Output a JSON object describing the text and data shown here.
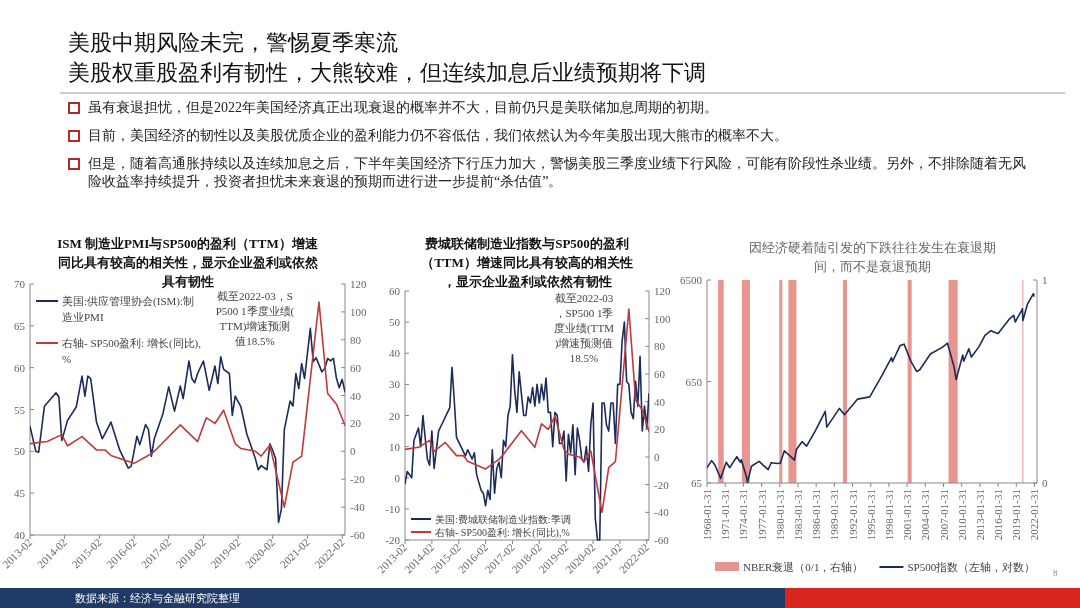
{
  "chart_data": [
    {
      "type": "other",
      "title": "美股中期风险未完，警惕夏季寒流",
      "subtitle": "美股权重股盈利有韧性，大熊较难，但连续加息后业绩预期将下调",
      "annotations": [
        "虽有衰退担忧，但是2022年美国经济真正出现衰退的概率并不大，目前仍只是美联储加息周期的初期。",
        "目前，美国经济的韧性以及美股优质企业的盈利能力仍不容低估，我们依然认为今年美股出现大熊市的概率不大。",
        "但是，随着高通胀持续以及连续加息之后，下半年美国经济下行压力加大，警惕美股三季度业绩下行风险，可能有阶段性杀业绩。另外，不排除随着无风险收益率持续提升，投资者担忧未来衰退的预期而进行进一步提前“杀估值”。",
        "数据来源：经济与金融研究院整理",
        "8"
      ]
    },
    {
      "type": "line",
      "title": "ISM 制造业PMI与SP500的盈利（TTM）增速同比具有较高的相关性，显示企业盈利或依然具有韧性",
      "legend": "top left",
      "xlim": [
        "2013-02",
        "2022-03"
      ],
      "xticks": [
        "2013-02",
        "2014-02",
        "2015-02",
        "2016-02",
        "2017-02",
        "2018-02",
        "2019-02",
        "2020-02",
        "2021-02",
        "2022-02"
      ],
      "ylim": [
        40,
        70
      ],
      "yticks": [
        40,
        45,
        50,
        55,
        60,
        65,
        70
      ],
      "y2lim": [
        -60,
        120
      ],
      "y2ticks": [
        -60,
        -40,
        -20,
        0,
        20,
        40,
        60,
        80,
        100,
        120
      ],
      "series": [
        {
          "name": "美国:供应管理协会(ISM):制造业PMI",
          "color": "#1c2b5a",
          "x": [
            "2013-02",
            "2013-04",
            "2013-05",
            "2013-07",
            "2013-09",
            "2013-11",
            "2013-12",
            "2014-01",
            "2014-03",
            "2014-06",
            "2014-08",
            "2014-09",
            "2014-10",
            "2014-11",
            "2015-01",
            "2015-03",
            "2015-05",
            "2015-06",
            "2015-09",
            "2015-12",
            "2016-01",
            "2016-03",
            "2016-04",
            "2016-06",
            "2016-07",
            "2016-08",
            "2016-09",
            "2016-12",
            "2017-02",
            "2017-04",
            "2017-06",
            "2017-07",
            "2017-09",
            "2017-10",
            "2017-11",
            "2017-12",
            "2018-02",
            "2018-04",
            "2018-05",
            "2018-06",
            "2018-07",
            "2018-08",
            "2018-09",
            "2018-11",
            "2018-12",
            "2019-01",
            "2019-03",
            "2019-05",
            "2019-08",
            "2019-09",
            "2019-10",
            "2019-12",
            "2020-01",
            "2020-02",
            "2020-03",
            "2020-04",
            "2020-05",
            "2020-06",
            "2020-08",
            "2020-09",
            "2020-10",
            "2020-11",
            "2020-12",
            "2021-01",
            "2021-03",
            "2021-04",
            "2021-05",
            "2021-07",
            "2021-08",
            "2021-09",
            "2021-10",
            "2021-11",
            "2021-12",
            "2022-01",
            "2022-02",
            "2022-03"
          ],
          "values": [
            53,
            50,
            49.9,
            55.4,
            56.2,
            57,
            56.5,
            51.3,
            53.7,
            55.3,
            59,
            56.6,
            59,
            58.7,
            53.5,
            51.5,
            52.8,
            53.5,
            50.2,
            48,
            48.2,
            51.8,
            50.8,
            53.2,
            52.6,
            49.4,
            51.5,
            54.5,
            57.7,
            54.8,
            57.8,
            56.3,
            60.8,
            58.7,
            58.2,
            59.3,
            60.8,
            57.3,
            58.7,
            60.2,
            58.1,
            61.3,
            59.8,
            59.3,
            54.3,
            56.6,
            55.3,
            52.1,
            49.1,
            47.8,
            48.3,
            47.8,
            50.9,
            50.1,
            49.1,
            41.5,
            43.1,
            52.6,
            56,
            55.4,
            59.3,
            57.5,
            60.5,
            58.7,
            64.7,
            60.7,
            61.2,
            59.5,
            59.9,
            61.1,
            60.8,
            61.1,
            58.8,
            57.6,
            58.6,
            57.1
          ]
        },
        {
          "name": "右轴- SP500盈利: 增长(同比),%",
          "color": "#c0393b",
          "axis": "y2",
          "x": [
            "2013-02",
            "2013-08",
            "2014-01",
            "2014-03",
            "2014-08",
            "2015-01",
            "2015-04",
            "2015-06",
            "2016-02",
            "2016-08",
            "2016-10",
            "2017-06",
            "2017-12",
            "2018-03",
            "2018-06",
            "2018-09",
            "2019-01",
            "2019-03",
            "2019-08",
            "2019-10",
            "2020-01",
            "2020-06",
            "2020-09",
            "2020-12",
            "2021-06",
            "2021-09",
            "2021-12",
            "2022-03"
          ],
          "values": [
            5.5,
            7,
            12,
            4,
            10.5,
            1,
            1,
            -3,
            -8.6,
            -1.7,
            2,
            19,
            7,
            24,
            20,
            29.5,
            5.5,
            2,
            0,
            -3.4,
            4.3,
            -40,
            -7.7,
            -3.4,
            107,
            41.5,
            34,
            18.5
          ]
        }
      ],
      "annotations": [
        "截至2022-03，SP500 1季度业绩(TTM)增速预测值18.5%"
      ]
    },
    {
      "type": "line",
      "title": "费城联储制造业指数与SP500的盈利（TTM）增速同比具有较高的相关性，显示企业盈利或依然有韧性",
      "legend": "bottom left",
      "xlim": [
        "2013-02",
        "2022-03"
      ],
      "xticks": [
        "2013-02",
        "2014-02",
        "2015-02",
        "2016-02",
        "2017-02",
        "2018-02",
        "2019-02",
        "2020-02",
        "2021-02",
        "2022-02"
      ],
      "ylim": [
        -20,
        60
      ],
      "yticks": [
        -20,
        -10,
        0,
        10,
        20,
        30,
        40,
        50,
        60
      ],
      "y2lim": [
        -60,
        120
      ],
      "y2ticks": [
        -60,
        -40,
        -20,
        0,
        20,
        40,
        60,
        80,
        100,
        120
      ],
      "series": [
        {
          "name": "美国:费城联储制造业指数:季调",
          "color": "#1c2b5a",
          "x": [
            "2013-02",
            "2013-03",
            "2013-05",
            "2013-06",
            "2013-08",
            "2013-09",
            "2013-10",
            "2013-12",
            "2014-01",
            "2014-02",
            "2014-03",
            "2014-05",
            "2014-07",
            "2014-09",
            "2014-10",
            "2014-11",
            "2014-12",
            "2015-01",
            "2015-03",
            "2015-05",
            "2015-06",
            "2015-08",
            "2015-09",
            "2015-10",
            "2015-12",
            "2016-01",
            "2016-02",
            "2016-03",
            "2016-04",
            "2016-05",
            "2016-06",
            "2016-07",
            "2016-08",
            "2016-09",
            "2016-10",
            "2016-11",
            "2016-12",
            "2017-01",
            "2017-02",
            "2017-03",
            "2017-04",
            "2017-05",
            "2017-06",
            "2017-07",
            "2017-08",
            "2017-09",
            "2017-10",
            "2017-11",
            "2017-12",
            "2018-01",
            "2018-02",
            "2018-03",
            "2018-04",
            "2018-05",
            "2018-06",
            "2018-07",
            "2018-08",
            "2018-09",
            "2018-10",
            "2018-11",
            "2018-12",
            "2019-01",
            "2019-02",
            "2019-03",
            "2019-04",
            "2019-05",
            "2019-06",
            "2019-07",
            "2019-08",
            "2019-09",
            "2019-10",
            "2019-11",
            "2019-12",
            "2020-01",
            "2020-02",
            "2020-03",
            "2020-04",
            "2020-05",
            "2020-06",
            "2020-07",
            "2020-08",
            "2020-09",
            "2020-10",
            "2020-11",
            "2020-12",
            "2021-01",
            "2021-02",
            "2021-03",
            "2021-04",
            "2021-05",
            "2021-06",
            "2021-07",
            "2021-08",
            "2021-09",
            "2021-10",
            "2021-11",
            "2021-12",
            "2022-01",
            "2022-02",
            "2022-03"
          ],
          "values": [
            -2,
            2,
            0,
            12,
            16,
            10,
            20,
            6,
            4,
            15,
            3,
            15,
            18,
            21,
            22.5,
            35.5,
            25,
            13,
            10,
            7,
            9,
            6,
            8,
            1,
            -4,
            -5,
            -9,
            -4,
            -7,
            9,
            -5,
            3,
            5,
            0,
            12,
            10,
            20,
            23,
            39.5,
            28,
            21,
            34,
            27,
            20,
            20,
            26,
            24,
            29,
            23,
            30,
            24,
            30,
            25,
            32,
            21,
            21,
            10,
            21,
            20,
            11,
            11,
            15,
            -1,
            14,
            8,
            17,
            1,
            16,
            12,
            6,
            5,
            10,
            2,
            17,
            24,
            -13,
            -20,
            -20,
            24,
            24,
            17,
            15,
            24,
            24,
            11,
            30,
            30,
            44,
            50,
            31,
            30,
            21,
            19,
            31,
            23,
            39,
            15,
            23,
            16,
            27
          ]
        },
        {
          "name": "右轴- SP500盈利: 增长(同比),%",
          "color": "#c0393b",
          "axis": "y2",
          "x": [
            "2013-02",
            "2013-08",
            "2014-01",
            "2014-03",
            "2014-08",
            "2015-01",
            "2015-04",
            "2015-06",
            "2016-02",
            "2016-08",
            "2016-10",
            "2017-06",
            "2017-12",
            "2018-03",
            "2018-06",
            "2018-09",
            "2019-01",
            "2019-03",
            "2019-08",
            "2019-10",
            "2020-01",
            "2020-06",
            "2020-09",
            "2020-12",
            "2021-06",
            "2021-09",
            "2021-12",
            "2022-03"
          ],
          "values": [
            5.5,
            7,
            12,
            4,
            10.5,
            1,
            1,
            -3,
            -8.6,
            -1.7,
            2,
            19,
            7,
            24,
            20,
            29.5,
            5.5,
            2,
            0,
            -3.4,
            4.3,
            -40,
            -7.7,
            -3.4,
            107,
            41.5,
            34,
            18.5
          ]
        }
      ],
      "annotations": [
        "截至2022-03，SP500 1季度业绩(TTM)增速预测值18.5%"
      ]
    },
    {
      "type": "line",
      "title": "因经济硬着陆引发的下跌往往发生在衰退期间，而不是衰退预期",
      "legend": "bottom",
      "log": true,
      "xlim": [
        "1968-01-31",
        "2022-06-30"
      ],
      "xticks": [
        "1968-01-31",
        "1971-01-31",
        "1974-01-31",
        "1977-01-31",
        "1980-01-31",
        "1983-01-31",
        "1986-01-31",
        "1989-01-31",
        "1992-01-31",
        "1995-01-31",
        "1998-01-31",
        "2001-01-31",
        "2004-01-31",
        "2007-01-31",
        "2010-01-31",
        "2013-01-31",
        "2016-01-31",
        "2019-01-31",
        "2022-01-31"
      ],
      "ylim": [
        65,
        6500
      ],
      "yticks": [
        65,
        650,
        6500
      ],
      "y2lim": [
        0,
        1
      ],
      "y2ticks": [
        0,
        1
      ],
      "bands": [
        {
          "axis": "x",
          "from": "1969-12",
          "to": "1970-11",
          "color": "#e8958f",
          "label": "NBER衰退（0/1，右轴）"
        },
        {
          "axis": "x",
          "from": "1973-11",
          "to": "1975-03",
          "color": "#e8958f"
        },
        {
          "axis": "x",
          "from": "1980-01",
          "to": "1980-07",
          "color": "#e8958f"
        },
        {
          "axis": "x",
          "from": "1981-07",
          "to": "1982-11",
          "color": "#e8958f"
        },
        {
          "axis": "x",
          "from": "1990-07",
          "to": "1991-03",
          "color": "#e8958f"
        },
        {
          "axis": "x",
          "from": "2001-03",
          "to": "2001-11",
          "color": "#e8958f"
        },
        {
          "axis": "x",
          "from": "2007-12",
          "to": "2009-06",
          "color": "#e8958f"
        },
        {
          "axis": "x",
          "from": "2020-02",
          "to": "2020-04",
          "color": "#e8958f"
        }
      ],
      "series": [
        {
          "name": "SP500指数（左轴，对数）",
          "color": "#1c2b5a",
          "x": [
            "1968-02",
            "1968-11",
            "1969-06",
            "1970-05",
            "1971-04",
            "1971-11",
            "1973-01",
            "1973-08",
            "1973-10",
            "1974-09",
            "1974-10",
            "1975-06",
            "1976-09",
            "1978-03",
            "1978-09",
            "1979-10",
            "1980-03",
            "1980-11",
            "1982-07",
            "1982-11",
            "1983-10",
            "1984-07",
            "1985-12",
            "1987-08",
            "1987-11",
            "1989-12",
            "1990-10",
            "1992-12",
            "1994-12",
            "1996-12",
            "1998-07",
            "1998-09",
            "1999-12",
            "2000-08",
            "2001-09",
            "2002-09",
            "2003-03",
            "2004-12",
            "2006-12",
            "2007-10",
            "2008-11",
            "2009-03",
            "2010-04",
            "2010-06",
            "2011-04",
            "2011-09",
            "2012-12",
            "2013-12",
            "2014-12",
            "2015-08",
            "2016-02",
            "2016-12",
            "2017-12",
            "2018-09",
            "2018-12",
            "2019-12",
            "2020-02",
            "2020-03",
            "2020-12",
            "2021-12",
            "2022-01"
          ],
          "values": [
            92,
            108,
            97,
            72,
            104,
            92,
            118,
            104,
            110,
            72,
            66,
            95,
            106,
            88,
            103,
            101,
            102,
            135,
            109,
            139,
            166,
            150,
            211,
            330,
            231,
            353,
            306,
            436,
            459,
            741,
            1120,
            1017,
            1469,
            1517,
            1040,
            815,
            848,
            1212,
            1418,
            1549,
            896,
            680,
            1187,
            1030,
            1364,
            1131,
            1426,
            1848,
            2059,
            1972,
            1932,
            2239,
            2674,
            2914,
            2507,
            3231,
            3380,
            2585,
            3756,
            4766,
            4516
          ]
        }
      ]
    }
  ]
}
